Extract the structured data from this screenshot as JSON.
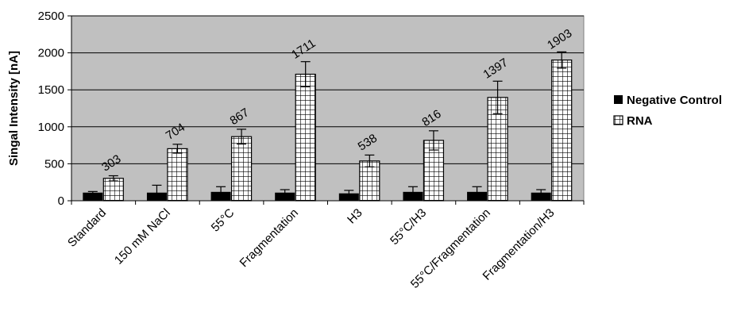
{
  "chart_data": {
    "type": "bar",
    "title": "",
    "xlabel": "",
    "ylabel": "Singal Intensity [nA]",
    "ylim": [
      0,
      2500
    ],
    "yticks": [
      0,
      500,
      1000,
      1500,
      2000,
      2500
    ],
    "grid": true,
    "legend_position": "right",
    "categories": [
      "Standard",
      "150 mM NaCl",
      "55°C",
      "Fragmentation",
      "H3",
      "55°C/H3",
      "55°C/Fragmentation",
      "Fragmentation/H3"
    ],
    "series": [
      {
        "name": "Negative Control",
        "values": [
          110,
          110,
          120,
          110,
          100,
          120,
          120,
          110
        ],
        "error": [
          15,
          100,
          70,
          40,
          40,
          70,
          70,
          40
        ],
        "color": "#000000"
      },
      {
        "name": "RNA",
        "values": [
          303,
          704,
          867,
          1711,
          538,
          816,
          1397,
          1903
        ],
        "error": [
          35,
          60,
          100,
          170,
          80,
          130,
          220,
          110
        ],
        "data_labels": [
          "303",
          "704",
          "867",
          "1711",
          "538",
          "816",
          "1397",
          "1903"
        ],
        "pattern": "grid"
      }
    ],
    "plot_background": "#c0c0c0"
  }
}
